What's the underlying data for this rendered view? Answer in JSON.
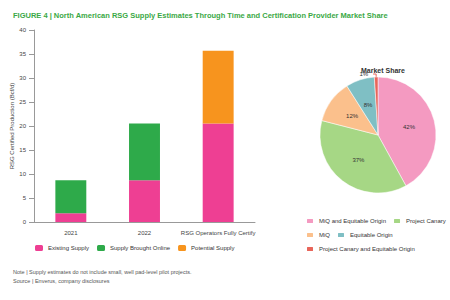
{
  "title": "FIGURE 4 | North American RSG Supply Estimates Through Time and Certification Provider Market Share",
  "note": "Note | Supply estimates do not include small, well pad-level pilot projects.",
  "source": "Source | Enverus, company disclosures",
  "chart_data": [
    {
      "type": "bar",
      "y_label": "RSG Certified Production (Bcf/d)",
      "categories": [
        "2021",
        "2022",
        "RSG Operators Fully Certify"
      ],
      "stacked": true,
      "series": [
        {
          "name": "Existing Supply",
          "color": "#ee3f93",
          "values": [
            1.8,
            8.7,
            20.5
          ]
        },
        {
          "name": "Supply Brought Online",
          "color": "#2eaa4a",
          "values": [
            6.9,
            11.8,
            null
          ]
        },
        {
          "name": "Potential Supply",
          "color": "#f7941e",
          "values": [
            null,
            null,
            15.2
          ]
        }
      ],
      "ylim": [
        0,
        40
      ],
      "yticks": [
        0,
        5,
        10,
        15,
        20,
        25,
        30,
        35,
        40
      ],
      "grid": false,
      "legend": "bottom"
    },
    {
      "type": "pie",
      "title": "Market Share",
      "categories": [
        "MiQ and Equitable Origin",
        "Project Canary",
        "MiQ",
        "Equitable Origin",
        "Project Canary and Equitable Origin"
      ],
      "values": [
        42,
        37,
        12,
        8,
        1
      ],
      "value_labels": [
        "42%",
        "37%",
        "12%",
        "8%",
        "1%"
      ],
      "colors": [
        "#f49ac1",
        "#a6d785",
        "#fbc08c",
        "#7fbfc4",
        "#e8655a"
      ],
      "data_labels": true,
      "legend": "bottom"
    }
  ]
}
